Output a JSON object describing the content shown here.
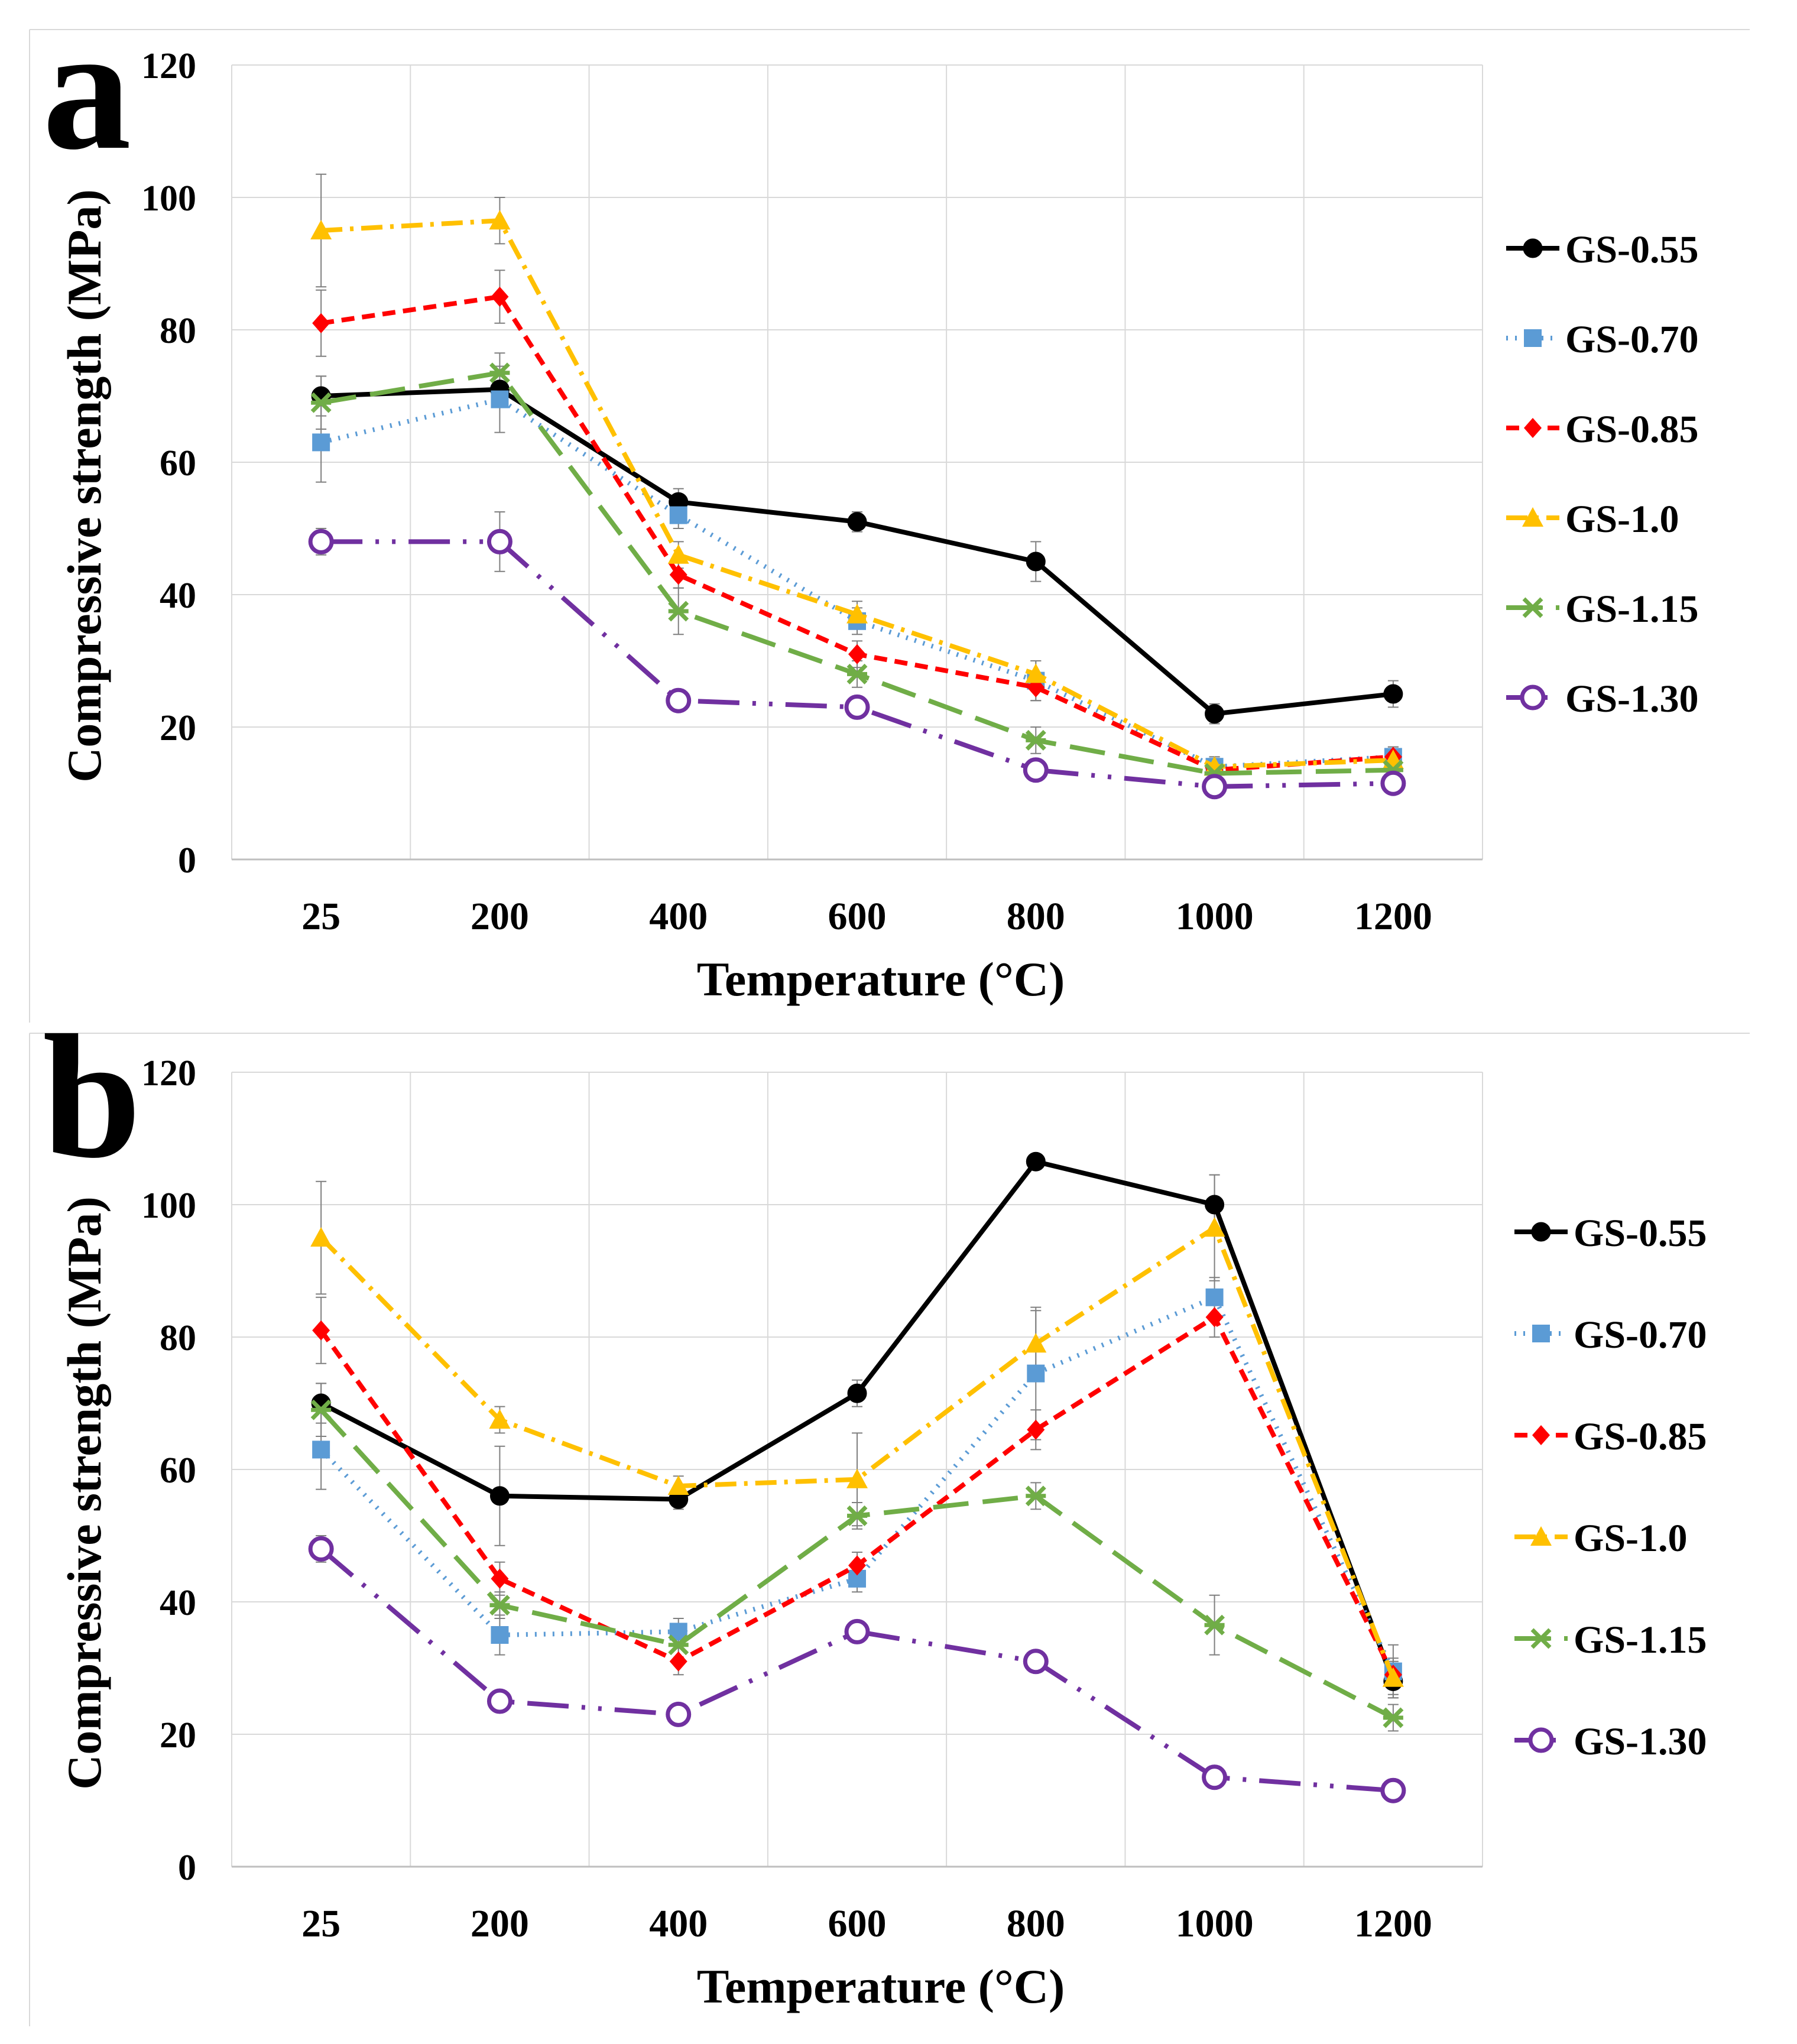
{
  "chart_data": [
    {
      "panel_label": "a",
      "type": "line",
      "xlabel": "Temperature (°C)",
      "ylabel": "Compressive strength (MPa)",
      "categories": [
        "25",
        "200",
        "400",
        "600",
        "800",
        "1000",
        "1200"
      ],
      "ylim": [
        0,
        120
      ],
      "yticks": [
        "0",
        "20",
        "40",
        "60",
        "80",
        "100",
        "120"
      ],
      "grid": true,
      "legend_position": "right",
      "series": [
        {
          "name": "GS-0.55",
          "values": [
            70,
            71,
            54,
            51,
            45,
            22,
            25
          ],
          "err": [
            3,
            2,
            2,
            1.5,
            3,
            1.5,
            2
          ],
          "color": "#000000",
          "marker": "circle",
          "dash": "solid"
        },
        {
          "name": "GS-0.70",
          "values": [
            63,
            69.5,
            52,
            36,
            27,
            14,
            15.5
          ],
          "err": [
            6,
            5,
            2,
            2,
            3,
            1.5,
            1.5
          ],
          "color": "#5B9BD5",
          "marker": "square",
          "dash": "dot"
        },
        {
          "name": "GS-0.85",
          "values": [
            81,
            85,
            43,
            31,
            26,
            13.5,
            15.5
          ],
          "err": [
            5,
            4,
            2,
            2,
            2,
            1.5,
            1.5
          ],
          "color": "#FF0000",
          "marker": "diamond",
          "dash": "dash"
        },
        {
          "name": "GS-1.0",
          "values": [
            95,
            96.5,
            46,
            37,
            28,
            14,
            15
          ],
          "err": [
            8.5,
            3.5,
            2,
            2,
            2,
            1.5,
            1.5
          ],
          "color": "#FFC000",
          "marker": "triangle",
          "dash": "dashdot"
        },
        {
          "name": "GS-1.15",
          "values": [
            69,
            73.5,
            37.5,
            28,
            18,
            13,
            13.5
          ],
          "err": [
            4,
            3,
            3.5,
            2,
            2,
            1.5,
            1.5
          ],
          "color": "#70AD47",
          "marker": "x",
          "dash": "longdash"
        },
        {
          "name": "GS-1.30",
          "values": [
            48,
            48,
            24,
            23,
            13.5,
            11,
            11.5
          ],
          "err": [
            2,
            4.5,
            1.5,
            1.5,
            1.5,
            1,
            1
          ],
          "color": "#7030A0",
          "marker": "open-circle",
          "dash": "dashdotdot"
        }
      ]
    },
    {
      "panel_label": "b",
      "type": "line",
      "xlabel": "Temperature (°C)",
      "ylabel": "Compressive strength (MPa)",
      "categories": [
        "25",
        "200",
        "400",
        "600",
        "800",
        "1000",
        "1200"
      ],
      "ylim": [
        0,
        120
      ],
      "yticks": [
        "0",
        "20",
        "40",
        "60",
        "80",
        "100",
        "120"
      ],
      "grid": true,
      "legend_position": "right",
      "series": [
        {
          "name": "GS-0.55",
          "values": [
            70,
            56,
            55.5,
            71.5,
            106.5,
            100,
            28
          ],
          "err": [
            3,
            7.5,
            1.5,
            2,
            1,
            4.5,
            2
          ],
          "color": "#000000",
          "marker": "circle",
          "dash": "solid"
        },
        {
          "name": "GS-0.70",
          "values": [
            63,
            35,
            35.5,
            43.5,
            74.5,
            86,
            29.5
          ],
          "err": [
            6,
            3,
            2,
            2,
            10,
            3,
            4
          ],
          "color": "#5B9BD5",
          "marker": "square",
          "dash": "dot"
        },
        {
          "name": "GS-0.85",
          "values": [
            81,
            43.5,
            31,
            45.5,
            66,
            83,
            29
          ],
          "err": [
            5,
            2.5,
            2,
            2,
            3,
            3,
            2
          ],
          "color": "#FF0000",
          "marker": "diamond",
          "dash": "dash"
        },
        {
          "name": "GS-1.0",
          "values": [
            95,
            67.5,
            57.5,
            58.5,
            79,
            96.5,
            28.5
          ],
          "err": [
            8.5,
            2,
            1.5,
            7,
            5,
            8,
            3
          ],
          "color": "#FFC000",
          "marker": "triangle",
          "dash": "dashdot"
        },
        {
          "name": "GS-1.15",
          "values": [
            69,
            39.5,
            33.5,
            53,
            56,
            36.5,
            22.5
          ],
          "err": [
            4,
            2,
            2,
            2,
            2,
            4.5,
            2
          ],
          "color": "#70AD47",
          "marker": "x",
          "dash": "longdash"
        },
        {
          "name": "GS-1.30",
          "values": [
            48,
            25,
            23,
            35.5,
            31,
            13.5,
            11.5
          ],
          "err": [
            2,
            1.5,
            1.5,
            1.5,
            1.5,
            1,
            1
          ],
          "color": "#7030A0",
          "marker": "open-circle",
          "dash": "dashdotdot"
        }
      ]
    }
  ]
}
